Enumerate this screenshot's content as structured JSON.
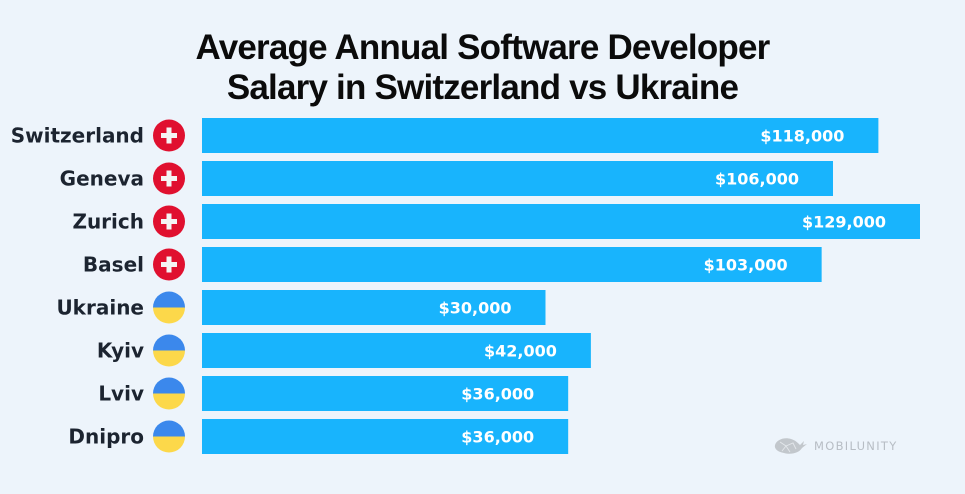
{
  "chart_data": {
    "type": "bar",
    "orientation": "horizontal",
    "title": "Average Annual Software Developer Salary in Switzerland vs Ukraine",
    "title_lines": [
      "Average Annual Software Developer",
      "Salary in Switzerland vs Ukraine"
    ],
    "xlabel": "",
    "ylabel": "",
    "grid": false,
    "legend": "none",
    "currency": "USD",
    "categories": [
      "Switzerland",
      "Geneva",
      "Zurich",
      "Basel",
      "Ukraine",
      "Kyiv",
      "Lviv",
      "Dnipro"
    ],
    "values": [
      118000,
      106000,
      129000,
      103000,
      30000,
      42000,
      36000,
      36000
    ],
    "value_labels": [
      "$118,000",
      "$106,000",
      "$129,000",
      "$103,000",
      "$30,000",
      "$42,000",
      "$36,000",
      "$36,000"
    ],
    "flags": [
      "switzerland-flag",
      "switzerland-flag",
      "switzerland-flag",
      "switzerland-flag",
      "ukraine-flag",
      "ukraine-flag",
      "ukraine-flag",
      "ukraine-flag"
    ],
    "xlim": [
      0,
      129000
    ]
  },
  "colors": {
    "background": "#edf4fb",
    "bar": "#18b4fd",
    "swiss_red": "#e0102f",
    "ukraine_blue": "#3b88ec",
    "ukraine_yellow": "#fcd84a"
  },
  "branding": {
    "logo_text": "MOBILUNITY",
    "logo_icon": "whale-icon"
  }
}
